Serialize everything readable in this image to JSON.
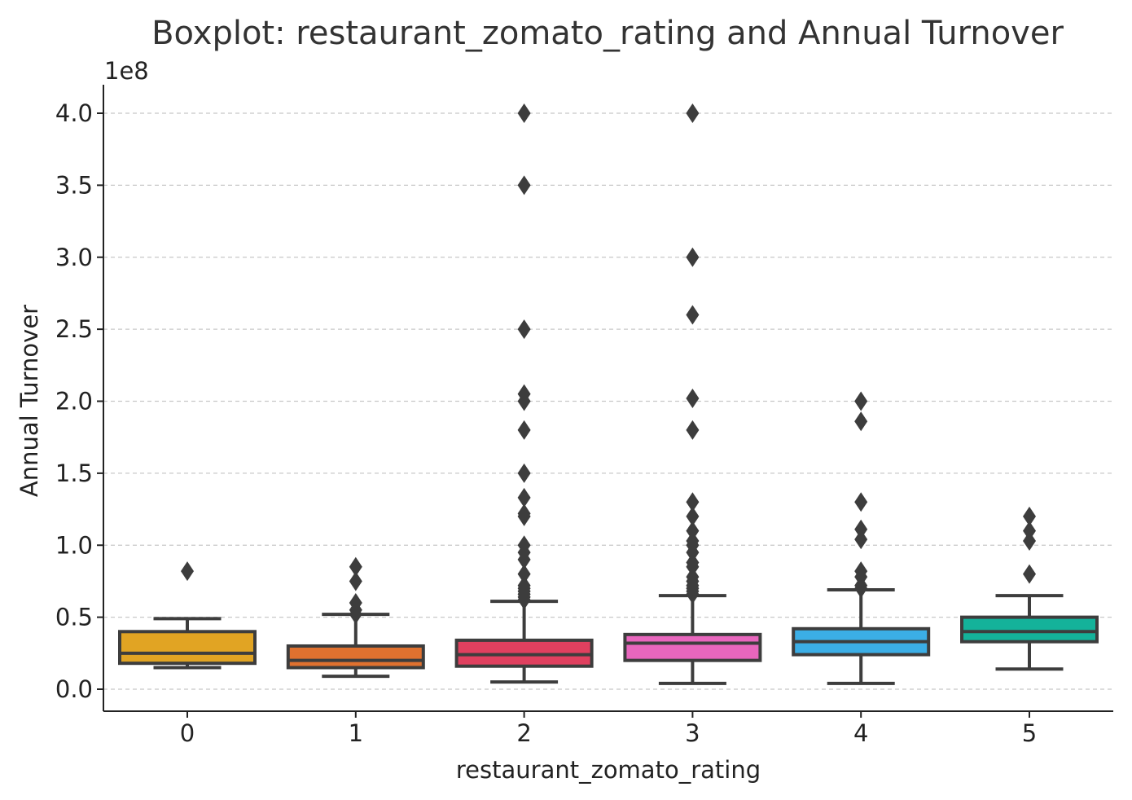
{
  "chart_data": {
    "type": "boxplot",
    "title": "Boxplot: restaurant_zomato_rating and Annual Turnover",
    "xlabel": "restaurant_zomato_rating",
    "ylabel": "Annual Turnover",
    "y_offset_label": "1e8",
    "y_scale": 100000000,
    "ylim": [
      -0.16,
      4.2
    ],
    "yticks": [
      0.0,
      0.5,
      1.0,
      1.5,
      2.0,
      2.5,
      3.0,
      3.5,
      4.0
    ],
    "ytick_labels": [
      "0.0",
      "0.5",
      "1.0",
      "1.5",
      "2.0",
      "2.5",
      "3.0",
      "3.5",
      "4.0"
    ],
    "grid": "horizontal-dashed",
    "legend": "none",
    "categories": [
      "0",
      "1",
      "2",
      "3",
      "4",
      "5"
    ],
    "boxes": [
      {
        "category": "0",
        "color": "#E1A423",
        "whisker_low": 0.15,
        "q1": 0.18,
        "median": 0.25,
        "q3": 0.4,
        "whisker_high": 0.49,
        "outliers": [
          0.82
        ]
      },
      {
        "category": "1",
        "color": "#E0712F",
        "whisker_low": 0.09,
        "q1": 0.15,
        "median": 0.2,
        "q3": 0.3,
        "whisker_high": 0.52,
        "outliers": [
          0.52,
          0.55,
          0.6,
          0.75,
          0.85
        ]
      },
      {
        "category": "2",
        "color": "#E0405F",
        "whisker_low": 0.05,
        "q1": 0.16,
        "median": 0.24,
        "q3": 0.34,
        "whisker_high": 0.61,
        "outliers": [
          0.62,
          0.64,
          0.66,
          0.68,
          0.7,
          0.72,
          0.8,
          0.9,
          0.95,
          1.0,
          1.2,
          1.22,
          1.33,
          1.5,
          1.8,
          2.0,
          2.05,
          2.5,
          3.5,
          4.0
        ]
      },
      {
        "category": "3",
        "color": "#E866BD",
        "whisker_low": 0.04,
        "q1": 0.2,
        "median": 0.32,
        "q3": 0.38,
        "whisker_high": 0.65,
        "outliers": [
          0.66,
          0.68,
          0.7,
          0.72,
          0.75,
          0.78,
          0.85,
          0.88,
          0.95,
          1.0,
          1.03,
          1.1,
          1.2,
          1.3,
          1.8,
          2.02,
          2.6,
          3.0,
          4.0
        ]
      },
      {
        "category": "4",
        "color": "#3BAEE6",
        "whisker_low": 0.04,
        "q1": 0.24,
        "median": 0.33,
        "q3": 0.42,
        "whisker_high": 0.69,
        "outliers": [
          0.7,
          0.72,
          0.78,
          0.82,
          1.04,
          1.11,
          1.3,
          1.86,
          2.0
        ]
      },
      {
        "category": "5",
        "color": "#14B29A",
        "whisker_low": 0.14,
        "q1": 0.33,
        "median": 0.4,
        "q3": 0.5,
        "whisker_high": 0.65,
        "outliers": [
          0.8,
          1.03,
          1.1,
          1.2
        ]
      }
    ]
  }
}
